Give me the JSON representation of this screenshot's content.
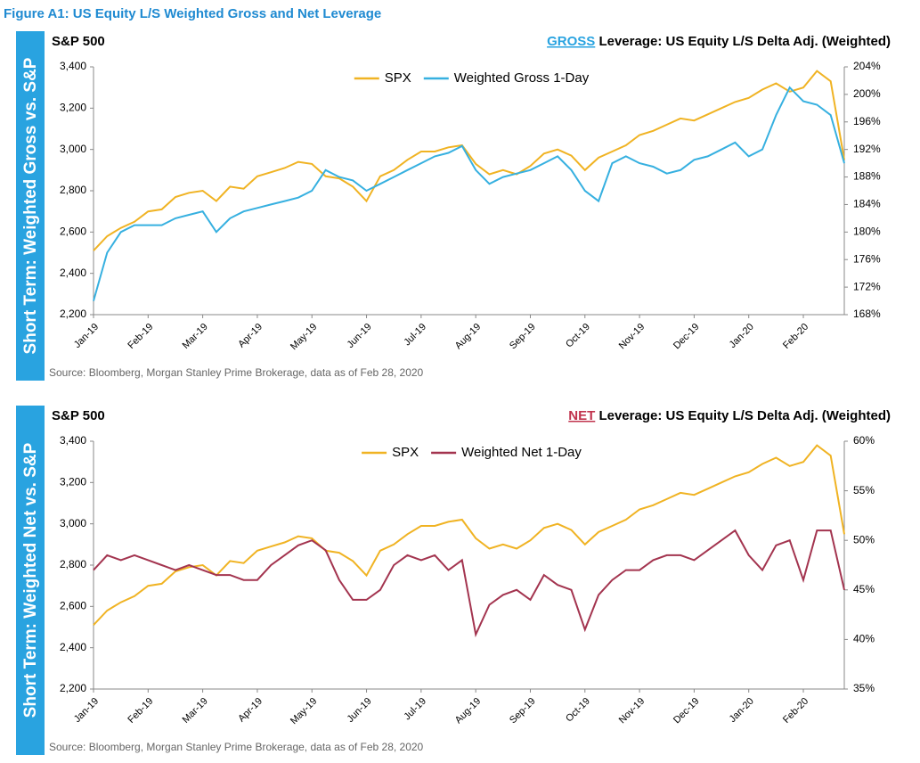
{
  "figure_title": "Figure A1: US Equity L/S Weighted Gross and Net Leverage",
  "chart_data": [
    {
      "type": "line",
      "side_label": "Short Term: Weighted Gross vs. S&P",
      "y_title": "S&P 500",
      "title_highlight": "GROSS",
      "title_highlight_color": "#29a3e0",
      "title": "Leverage: US Equity L/S Delta Adj. (Weighted)",
      "source": "Source: Bloomberg, Morgan Stanley Prime Brokerage, data as of Feb 28, 2020",
      "categories": [
        "Jan-19",
        null,
        null,
        null,
        "Feb-19",
        null,
        null,
        null,
        "Mar-19",
        null,
        null,
        null,
        "Apr-19",
        null,
        null,
        null,
        "May-19",
        null,
        null,
        null,
        "Jun-19",
        null,
        null,
        null,
        "Jul-19",
        null,
        null,
        null,
        "Aug-19",
        null,
        null,
        null,
        "Sep-19",
        null,
        null,
        null,
        "Oct-19",
        null,
        null,
        null,
        "Nov-19",
        null,
        null,
        null,
        "Dec-19",
        null,
        null,
        null,
        "Jan-20",
        null,
        null,
        null,
        "Feb-20",
        null,
        null,
        null
      ],
      "ylim": [
        2200,
        3400
      ],
      "yticks": [
        {
          "value": 2200,
          "label": "2,200"
        },
        {
          "value": 2400,
          "label": "2,400"
        },
        {
          "value": 2600,
          "label": "2,600"
        },
        {
          "value": 2800,
          "label": "2,800"
        },
        {
          "value": 3000,
          "label": "3,000"
        },
        {
          "value": 3200,
          "label": "3,200"
        },
        {
          "value": 3400,
          "label": "3,400"
        }
      ],
      "y2lim": [
        168,
        204
      ],
      "y2ticks": [
        {
          "value": 168,
          "label": "168%"
        },
        {
          "value": 172,
          "label": "172%"
        },
        {
          "value": 176,
          "label": "176%"
        },
        {
          "value": 180,
          "label": "180%"
        },
        {
          "value": 184,
          "label": "184%"
        },
        {
          "value": 188,
          "label": "188%"
        },
        {
          "value": 192,
          "label": "192%"
        },
        {
          "value": 196,
          "label": "196%"
        },
        {
          "value": 200,
          "label": "200%"
        },
        {
          "value": 204,
          "label": "204%"
        }
      ],
      "series": [
        {
          "name": "SPX",
          "color": "#f0b323",
          "values": [
            2510,
            2580,
            2620,
            2650,
            2700,
            2710,
            2770,
            2790,
            2800,
            2750,
            2820,
            2810,
            2870,
            2890,
            2910,
            2940,
            2930,
            2870,
            2860,
            2820,
            2750,
            2870,
            2900,
            2950,
            2990,
            2990,
            3010,
            3020,
            2930,
            2880,
            2900,
            2880,
            2920,
            2980,
            3000,
            2970,
            2900,
            2960,
            2990,
            3020,
            3070,
            3090,
            3120,
            3150,
            3140,
            3170,
            3200,
            3230,
            3250,
            3290,
            3320,
            3280,
            3300,
            3380,
            3330,
            2950
          ]
        },
        {
          "name": "Weighted Gross 1-Day",
          "color": "#36b0e0",
          "axis": "y2",
          "values": [
            170,
            177,
            180,
            181,
            181,
            181,
            182,
            182.5,
            183,
            180,
            182,
            183,
            183.5,
            184,
            184.5,
            185,
            186,
            189,
            188,
            187.5,
            186,
            187,
            188,
            189,
            190,
            191,
            191.5,
            192.5,
            189,
            187,
            188,
            188.5,
            189,
            190,
            191,
            189,
            186,
            184.5,
            190,
            191,
            190,
            189.5,
            188.5,
            189,
            190.5,
            191,
            192,
            193,
            191,
            192,
            197,
            201,
            199,
            198.5,
            197,
            190
          ]
        }
      ]
    },
    {
      "type": "line",
      "side_label": "Short Term: Weighted Net vs. S&P",
      "y_title": "S&P 500",
      "title_highlight": "NET",
      "title_highlight_color": "#c0334d",
      "title": "Leverage: US Equity L/S Delta Adj. (Weighted)",
      "source": "Source: Bloomberg, Morgan Stanley Prime Brokerage, data as of Feb 28, 2020",
      "categories": [
        "Jan-19",
        null,
        null,
        null,
        "Feb-19",
        null,
        null,
        null,
        "Mar-19",
        null,
        null,
        null,
        "Apr-19",
        null,
        null,
        null,
        "May-19",
        null,
        null,
        null,
        "Jun-19",
        null,
        null,
        null,
        "Jul-19",
        null,
        null,
        null,
        "Aug-19",
        null,
        null,
        null,
        "Sep-19",
        null,
        null,
        null,
        "Oct-19",
        null,
        null,
        null,
        "Nov-19",
        null,
        null,
        null,
        "Dec-19",
        null,
        null,
        null,
        "Jan-20",
        null,
        null,
        null,
        "Feb-20",
        null,
        null,
        null
      ],
      "ylim": [
        2200,
        3400
      ],
      "yticks": [
        {
          "value": 2200,
          "label": "2,200"
        },
        {
          "value": 2400,
          "label": "2,400"
        },
        {
          "value": 2600,
          "label": "2,600"
        },
        {
          "value": 2800,
          "label": "2,800"
        },
        {
          "value": 3000,
          "label": "3,000"
        },
        {
          "value": 3200,
          "label": "3,200"
        },
        {
          "value": 3400,
          "label": "3,400"
        }
      ],
      "y2lim": [
        35,
        60
      ],
      "y2ticks": [
        {
          "value": 35,
          "label": "35%"
        },
        {
          "value": 40,
          "label": "40%"
        },
        {
          "value": 45,
          "label": "45%"
        },
        {
          "value": 50,
          "label": "50%"
        },
        {
          "value": 55,
          "label": "55%"
        },
        {
          "value": 60,
          "label": "60%"
        }
      ],
      "series": [
        {
          "name": "SPX",
          "color": "#f0b323",
          "values": [
            2510,
            2580,
            2620,
            2650,
            2700,
            2710,
            2770,
            2790,
            2800,
            2750,
            2820,
            2810,
            2870,
            2890,
            2910,
            2940,
            2930,
            2870,
            2860,
            2820,
            2750,
            2870,
            2900,
            2950,
            2990,
            2990,
            3010,
            3020,
            2930,
            2880,
            2900,
            2880,
            2920,
            2980,
            3000,
            2970,
            2900,
            2960,
            2990,
            3020,
            3070,
            3090,
            3120,
            3150,
            3140,
            3170,
            3200,
            3230,
            3250,
            3290,
            3320,
            3280,
            3300,
            3380,
            3330,
            2950
          ]
        },
        {
          "name": "Weighted Net 1-Day",
          "color": "#a3344f",
          "axis": "y2",
          "values": [
            47,
            48.5,
            48,
            48.5,
            48,
            47.5,
            47,
            47.5,
            47,
            46.5,
            46.5,
            46,
            46,
            47.5,
            48.5,
            49.5,
            50,
            49,
            46,
            44,
            44,
            45,
            47.5,
            48.5,
            48,
            48.5,
            47,
            48,
            40.5,
            43.5,
            44.5,
            45,
            44,
            46.5,
            45.5,
            45,
            41,
            44.5,
            46,
            47,
            47,
            48,
            48.5,
            48.5,
            48,
            49,
            50,
            51,
            48.5,
            47,
            49.5,
            50,
            46,
            51,
            51,
            45
          ]
        }
      ]
    }
  ]
}
